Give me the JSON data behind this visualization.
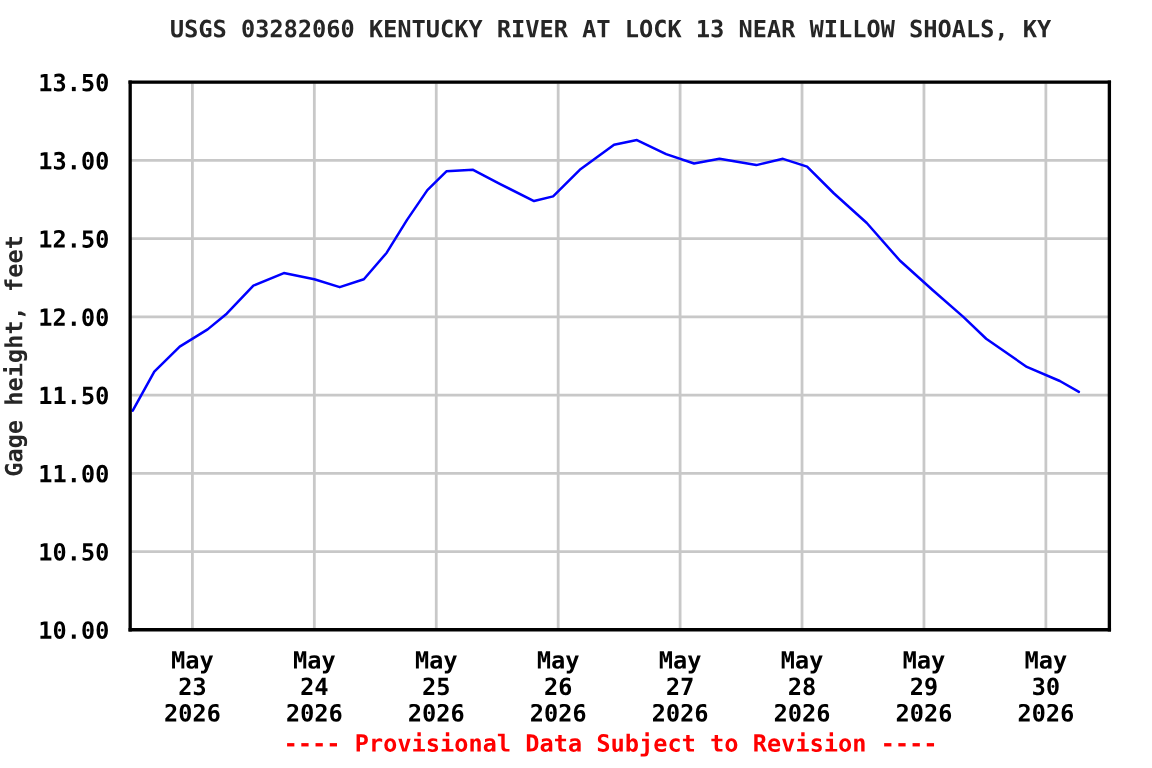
{
  "chart_data": {
    "type": "line",
    "title": "USGS 03282060 KENTUCKY RIVER AT LOCK 13 NEAR WILLOW SHOALS, KY",
    "ylabel": "Gage height, feet",
    "annotations": [
      "---- Provisional Data Subject to Revision ----"
    ],
    "x": [
      "2026-05-22T12:15",
      "2026-05-22T16:30",
      "2026-05-22T21:30",
      "2026-05-23T03:00",
      "2026-05-23T06:45",
      "2026-05-23T12:00",
      "2026-05-23T18:00",
      "2026-05-24T00:00",
      "2026-05-24T05:00",
      "2026-05-24T09:45",
      "2026-05-24T14:15",
      "2026-05-24T18:15",
      "2026-05-24T22:15",
      "2026-05-25T02:00",
      "2026-05-25T07:15",
      "2026-05-25T12:30",
      "2026-05-25T19:15",
      "2026-05-25T23:00",
      "2026-05-26T04:15",
      "2026-05-26T11:00",
      "2026-05-26T15:30",
      "2026-05-26T21:15",
      "2026-05-27T02:45",
      "2026-05-27T07:45",
      "2026-05-27T15:00",
      "2026-05-27T20:15",
      "2026-05-28T01:00",
      "2026-05-28T06:15",
      "2026-05-28T12:45",
      "2026-05-28T19:15",
      "2026-05-29T01:45",
      "2026-05-29T07:45",
      "2026-05-29T12:15",
      "2026-05-29T20:15",
      "2026-05-30T02:45",
      "2026-05-30T06:30"
    ],
    "series": [
      {
        "color": "#0000ff",
        "values": [
          11.4,
          11.65,
          11.81,
          11.92,
          12.02,
          12.2,
          12.28,
          12.24,
          12.19,
          12.24,
          12.41,
          12.62,
          12.81,
          12.93,
          12.94,
          12.85,
          12.74,
          12.77,
          12.94,
          13.1,
          13.13,
          13.04,
          12.98,
          13.01,
          12.97,
          13.01,
          12.96,
          12.79,
          12.6,
          12.36,
          12.17,
          12.0,
          11.86,
          11.68,
          11.59,
          11.52
        ]
      }
    ],
    "xlim": [
      "2026-05-22T11:45",
      "2026-05-30T12:30"
    ],
    "xticks": [
      {
        "value": "2026-05-23",
        "label": "May\n23\n2026"
      },
      {
        "value": "2026-05-24",
        "label": "May\n24\n2026"
      },
      {
        "value": "2026-05-25",
        "label": "May\n25\n2026"
      },
      {
        "value": "2026-05-26",
        "label": "May\n26\n2026"
      },
      {
        "value": "2026-05-27",
        "label": "May\n27\n2026"
      },
      {
        "value": "2026-05-28",
        "label": "May\n28\n2026"
      },
      {
        "value": "2026-05-29",
        "label": "May\n29\n2026"
      },
      {
        "value": "2026-05-30",
        "label": "May\n30\n2026"
      }
    ],
    "ylim": [
      10.0,
      13.5
    ],
    "yticks": [
      {
        "value": 10.0,
        "label": "10.00"
      },
      {
        "value": 10.5,
        "label": "10.50"
      },
      {
        "value": 11.0,
        "label": "11.00"
      },
      {
        "value": 11.5,
        "label": "11.50"
      },
      {
        "value": 12.0,
        "label": "12.00"
      },
      {
        "value": 12.5,
        "label": "12.50"
      },
      {
        "value": 13.0,
        "label": "13.00"
      },
      {
        "value": 13.5,
        "label": "13.50"
      }
    ],
    "grid": true,
    "line_style": "solid",
    "marker": "none",
    "legend": false
  }
}
